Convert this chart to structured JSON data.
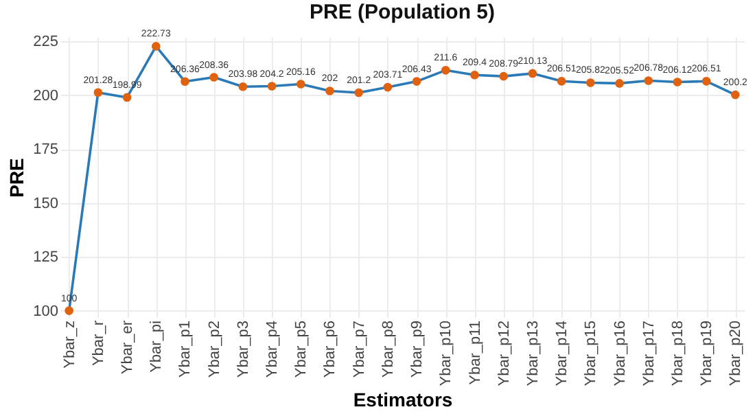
{
  "chart_data": {
    "type": "line",
    "title": "PRE (Population 5)",
    "xlabel": "Estimators",
    "ylabel": "PRE",
    "categories": [
      "Ybar_z",
      "Ybar_r",
      "Ybar_er",
      "Ybar_pi",
      "Ybar_p1",
      "Ybar_p2",
      "Ybar_p3",
      "Ybar_p4",
      "Ybar_p5",
      "Ybar_p6",
      "Ybar_p7",
      "Ybar_p8",
      "Ybar_p9",
      "Ybar_p10",
      "Ybar_p11",
      "Ybar_p12",
      "Ybar_p13",
      "Ybar_p14",
      "Ybar_p15",
      "Ybar_p16",
      "Ybar_p17",
      "Ybar_p18",
      "Ybar_p19",
      "Ybar_p20"
    ],
    "series": [
      {
        "color": "#2a7ab8",
        "colors": [
          "#e0620f",
          "#e0620f",
          "#e0620f",
          "#e0620f",
          "#e0620f",
          "#e0620f",
          "#e0620f",
          "#e0620f",
          "#e0620f",
          "#e0620f",
          "#e0620f",
          "#e0620f",
          "#e0620f",
          "#e0620f",
          "#e0620f",
          "#e0620f",
          "#e0620f",
          "#e0620f",
          "#e0620f",
          "#e0620f",
          "#e0620f",
          "#e0620f",
          "#e0620f",
          "#e0620f"
        ],
        "values": [
          100,
          201.28,
          198.99,
          222.73,
          206.36,
          208.36,
          203.98,
          204.2,
          205.16,
          202,
          201.2,
          203.71,
          206.43,
          211.6,
          209.4,
          208.79,
          210.13,
          206.51,
          205.82,
          205.52,
          206.78,
          206.12,
          206.51,
          200.2
        ]
      }
    ],
    "ylim": [
      97,
      227
    ],
    "yticks": [
      100,
      125,
      150,
      175,
      200,
      225
    ],
    "grid": true,
    "marker": "circle",
    "data_labels": true
  }
}
